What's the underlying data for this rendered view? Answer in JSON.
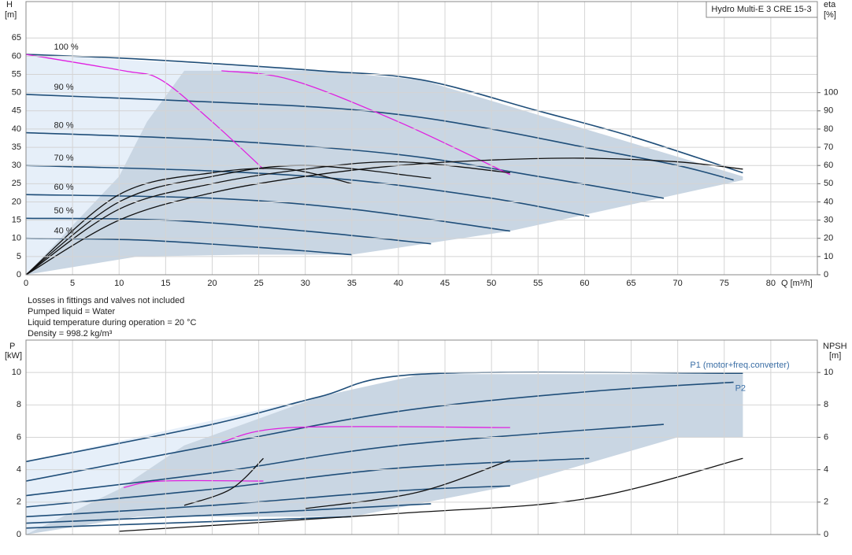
{
  "chart_data": [
    {
      "type": "line",
      "title": "Hydro Multi-E 3 CRE 15-3",
      "y_label": "H",
      "y_unit": "[m]",
      "y2_label": "eta",
      "y2_unit": "[%]",
      "x_label": "Q [m³/h]",
      "xlim": [
        0,
        85
      ],
      "xticks": [
        0,
        5,
        10,
        15,
        20,
        25,
        30,
        35,
        40,
        45,
        50,
        55,
        60,
        65,
        70,
        75,
        80
      ],
      "ylim": [
        0,
        75
      ],
      "yticks": [
        0,
        5,
        10,
        15,
        20,
        25,
        30,
        35,
        40,
        45,
        50,
        55,
        60,
        65
      ],
      "y2lim": [
        0,
        150
      ],
      "y2ticks": [
        0,
        10,
        20,
        30,
        40,
        50,
        60,
        70,
        80,
        90,
        100
      ],
      "grid": true,
      "notes": [
        "Losses in fittings and valves not included",
        "Pumped liquid = Water",
        "Liquid temperature during operation = 20 °C",
        "Density = 998.2 kg/m³"
      ],
      "regions": [
        {
          "color": "#e6eff9",
          "x": [
            0,
            0,
            31.5,
            20,
            11,
            0
          ],
          "values": [
            0,
            60.5,
            56,
            42,
            27,
            0
          ]
        },
        {
          "color": "#c9d6e3",
          "x": [
            0,
            10,
            13,
            17,
            31.5,
            42.5,
            77,
            77,
            52,
            35,
            23.5,
            12,
            0
          ],
          "values": [
            0,
            27,
            42,
            56,
            56,
            53.5,
            27,
            26,
            12,
            5.5,
            5.5,
            5,
            0
          ]
        }
      ],
      "series": [
        {
          "name": "100 %",
          "color": "#1f4e79",
          "x": [
            0,
            10,
            20,
            31.5,
            42.5,
            55,
            65,
            77
          ],
          "values": [
            60.5,
            59.5,
            58,
            56,
            53.5,
            45,
            38,
            28
          ]
        },
        {
          "name": "90 %",
          "color": "#1f4e79",
          "x": [
            0,
            28,
            40,
            50,
            60,
            70,
            76
          ],
          "values": [
            49.5,
            46.5,
            44,
            40,
            35,
            30,
            26
          ]
        },
        {
          "name": "80 %",
          "color": "#1f4e79",
          "x": [
            0,
            20,
            40,
            55,
            68.5
          ],
          "values": [
            39,
            37,
            33,
            27,
            21
          ]
        },
        {
          "name": "70 %",
          "color": "#1f4e79",
          "x": [
            0,
            20,
            35,
            50,
            60.5
          ],
          "values": [
            30,
            28.5,
            26,
            21,
            16
          ]
        },
        {
          "name": "60 %",
          "color": "#1f4e79",
          "x": [
            0,
            20,
            35,
            52
          ],
          "values": [
            22,
            21,
            18,
            12
          ]
        },
        {
          "name": "50 %",
          "color": "#1f4e79",
          "x": [
            0,
            15,
            30,
            43.5
          ],
          "values": [
            15.5,
            15,
            12,
            8.5
          ]
        },
        {
          "name": "40 %",
          "color": "#1f4e79",
          "x": [
            0,
            12.5,
            25,
            35
          ],
          "values": [
            10,
            9.5,
            7.5,
            5.5
          ]
        },
        {
          "color": "#e020e0",
          "x": [
            0,
            10.5,
            14.5,
            20,
            25.5
          ],
          "values": [
            60.5,
            56,
            53.5,
            42,
            29
          ]
        },
        {
          "color": "#e020e0",
          "x": [
            21,
            28.5,
            40,
            52
          ],
          "values": [
            56,
            53.5,
            42,
            27.5
          ]
        },
        {
          "color": "#111111",
          "axis": "y2",
          "x": [
            0,
            10,
            20,
            30,
            40,
            50,
            60,
            70,
            77
          ],
          "values": [
            0,
            30,
            45,
            54,
            60,
            63,
            64,
            62,
            58
          ]
        },
        {
          "color": "#111111",
          "axis": "y2",
          "x": [
            0,
            10,
            20,
            30,
            40,
            52
          ],
          "values": [
            0,
            36,
            50,
            58,
            62,
            56
          ]
        },
        {
          "color": "#111111",
          "axis": "y2",
          "x": [
            0,
            10,
            20,
            30,
            43.5
          ],
          "values": [
            0,
            40,
            54,
            60,
            53
          ]
        },
        {
          "color": "#111111",
          "axis": "y2",
          "x": [
            0,
            10,
            20,
            28,
            35
          ],
          "values": [
            0,
            44,
            56,
            58,
            50
          ]
        }
      ]
    },
    {
      "type": "line",
      "y_label": "P",
      "y_unit": "[kW]",
      "y2_label": "NPSH",
      "y2_unit": "[m]",
      "xlim": [
        0,
        85
      ],
      "xticks": [
        0,
        5,
        10,
        15,
        20,
        25,
        30,
        35,
        40,
        45,
        50,
        55,
        60,
        65,
        70,
        75,
        80
      ],
      "x_tick_labels": false,
      "ylim": [
        0,
        12
      ],
      "yticks": [
        0,
        2,
        4,
        6,
        8,
        10
      ],
      "y2lim": [
        0,
        12
      ],
      "y2ticks": [
        0,
        2,
        4,
        6,
        8,
        10
      ],
      "grid": true,
      "regions": [
        {
          "color": "#e6eff9",
          "x": [
            0,
            0,
            31.5,
            17,
            10,
            0
          ],
          "values": [
            0,
            4.5,
            8.5,
            5.5,
            2.8,
            0
          ]
        },
        {
          "color": "#c9d6e3",
          "x": [
            0,
            10,
            17,
            31.5,
            42.5,
            77,
            77,
            70,
            52,
            35,
            23,
            12,
            0
          ],
          "values": [
            0,
            2.8,
            5.5,
            8.5,
            9.9,
            9.9,
            6,
            6,
            3,
            1.1,
            1.1,
            1.1,
            0
          ]
        }
      ],
      "series": [
        {
          "name": "P1 (motor+freq.converter)",
          "color": "#1f4e79",
          "x": [
            0,
            20,
            31.5,
            42.5,
            77
          ],
          "values": [
            4.5,
            6.8,
            8.5,
            9.9,
            9.95
          ]
        },
        {
          "name": "P2",
          "color": "#1f4e79",
          "x": [
            0,
            20,
            40,
            60,
            76
          ],
          "values": [
            3.3,
            5.5,
            7.6,
            8.8,
            9.4
          ]
        },
        {
          "color": "#1f4e79",
          "x": [
            0,
            20,
            40,
            68.5
          ],
          "values": [
            2.4,
            3.8,
            5.5,
            6.8
          ]
        },
        {
          "color": "#1f4e79",
          "x": [
            0,
            20,
            40,
            60.5
          ],
          "values": [
            1.7,
            2.8,
            4.1,
            4.7
          ]
        },
        {
          "color": "#1f4e79",
          "x": [
            0,
            20,
            40,
            52
          ],
          "values": [
            1.1,
            1.8,
            2.7,
            3.0
          ]
        },
        {
          "color": "#1f4e79",
          "x": [
            0,
            20,
            43.5
          ],
          "values": [
            0.7,
            1.2,
            1.9
          ]
        },
        {
          "color": "#1f4e79",
          "x": [
            0,
            20,
            35
          ],
          "values": [
            0.4,
            0.8,
            1.1
          ]
        },
        {
          "color": "#e020e0",
          "x": [
            10.5,
            14.5,
            25.5
          ],
          "values": [
            2.9,
            3.3,
            3.3
          ]
        },
        {
          "color": "#e020e0",
          "x": [
            21,
            28.5,
            52
          ],
          "values": [
            5.7,
            6.6,
            6.6
          ]
        },
        {
          "color": "#111111",
          "axis": "y2",
          "x": [
            17,
            22,
            25.5
          ],
          "values": [
            1.8,
            2.8,
            4.7
          ]
        },
        {
          "color": "#111111",
          "axis": "y2",
          "x": [
            30,
            42,
            52
          ],
          "values": [
            1.6,
            2.6,
            4.6
          ]
        },
        {
          "color": "#111111",
          "axis": "y2",
          "x": [
            10,
            40,
            60,
            77
          ],
          "values": [
            0.2,
            1.3,
            2.2,
            4.7
          ]
        }
      ]
    }
  ]
}
